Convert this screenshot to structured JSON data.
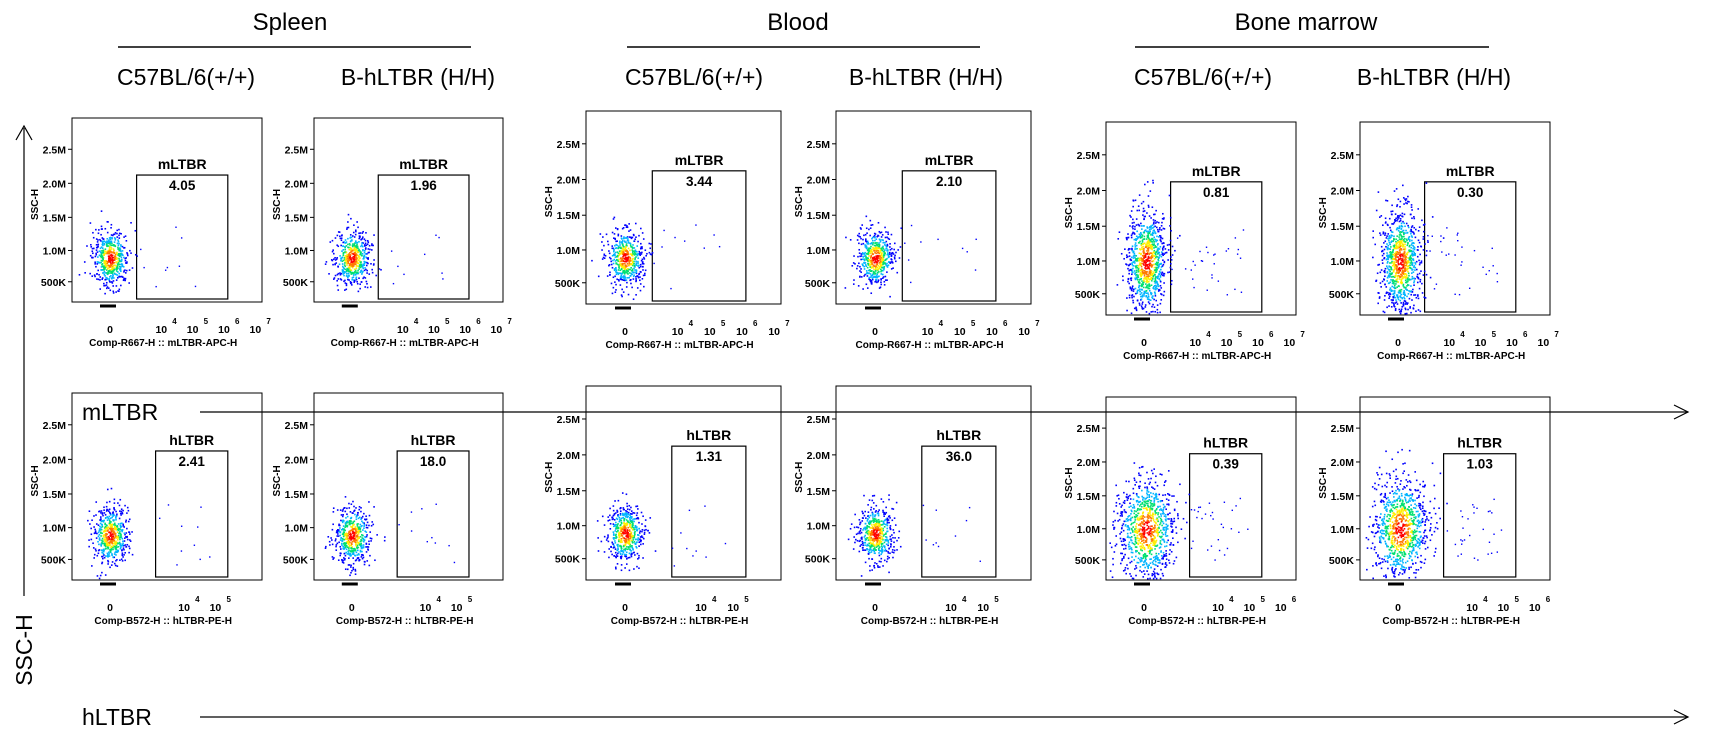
{
  "chart_data": {
    "type": "scatter",
    "tissues": [
      "Spleen",
      "Blood",
      "Bone marrow"
    ],
    "genotypes": [
      "C57BL/6(+/+)",
      "B-hLTBR (H/H)"
    ],
    "rows": [
      {
        "row_label": "mLTBR",
        "gate_name": "mLTBR",
        "xlabel": "Comp-R667-H :: mLTBR-APC-H",
        "x_ticks": [
          {
            "base": "0",
            "exp": ""
          },
          {
            "base": "10",
            "exp": "4"
          },
          {
            "base": "10",
            "exp": "5"
          },
          {
            "base": "10",
            "exp": "6"
          },
          {
            "base": "10",
            "exp": "7"
          }
        ],
        "gate_percentages": [
          {
            "tissue": "Spleen",
            "genotype": "C57BL/6(+/+)",
            "value": "4.05"
          },
          {
            "tissue": "Spleen",
            "genotype": "B-hLTBR (H/H)",
            "value": "1.96"
          },
          {
            "tissue": "Blood",
            "genotype": "C57BL/6(+/+)",
            "value": "3.44"
          },
          {
            "tissue": "Blood",
            "genotype": "B-hLTBR (H/H)",
            "value": "2.10"
          },
          {
            "tissue": "Bone marrow",
            "genotype": "C57BL/6(+/+)",
            "value": "0.81"
          },
          {
            "tissue": "Bone marrow",
            "genotype": "B-hLTBR (H/H)",
            "value": "0.30"
          }
        ]
      },
      {
        "row_label": "hLTBR",
        "gate_name": "hLTBR",
        "xlabel": "Comp-B572-H :: hLTBR-PE-H",
        "x_ticks": [
          {
            "base": "0",
            "exp": ""
          },
          {
            "base": "10",
            "exp": "4"
          },
          {
            "base": "10",
            "exp": "5"
          }
        ],
        "x_ticks_bone_marrow": [
          {
            "base": "0",
            "exp": ""
          },
          {
            "base": "10",
            "exp": "4"
          },
          {
            "base": "10",
            "exp": "5"
          },
          {
            "base": "10",
            "exp": "6"
          }
        ],
        "gate_percentages": [
          {
            "tissue": "Spleen",
            "genotype": "C57BL/6(+/+)",
            "value": "2.41"
          },
          {
            "tissue": "Spleen",
            "genotype": "B-hLTBR (H/H)",
            "value": "18.0"
          },
          {
            "tissue": "Blood",
            "genotype": "C57BL/6(+/+)",
            "value": "1.31"
          },
          {
            "tissue": "Blood",
            "genotype": "B-hLTBR (H/H)",
            "value": "36.0"
          },
          {
            "tissue": "Bone marrow",
            "genotype": "C57BL/6(+/+)",
            "value": "0.39"
          },
          {
            "tissue": "Bone marrow",
            "genotype": "B-hLTBR (H/H)",
            "value": "1.03"
          }
        ]
      }
    ],
    "ylabel": "SSC-H",
    "y_ticks": [
      "2.5M",
      "2.0M",
      "1.5M",
      "1.0M",
      "500K"
    ],
    "y_axis_label": "SSC-H",
    "density_colors": [
      "#0000ff",
      "#00b4ff",
      "#00e070",
      "#ffee00",
      "#ff7a00",
      "#ff0000"
    ]
  }
}
